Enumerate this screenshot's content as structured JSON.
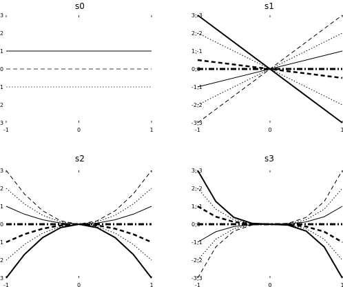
{
  "chart_data": [
    {
      "type": "line",
      "title": "s0",
      "xlim": [
        -1,
        1
      ],
      "ylim": [
        -3,
        3
      ],
      "x_ticks": [
        "-1",
        "0",
        "1"
      ],
      "y_ticks": [
        "3",
        "2",
        "1",
        "0",
        "1",
        "2",
        "3"
      ],
      "y_tick_values": [
        3,
        2,
        1,
        0,
        -1,
        -2,
        -3
      ],
      "series": [
        {
          "style": "solid",
          "width": 1.0,
          "x": [
            -1,
            1
          ],
          "y": [
            1,
            1
          ]
        },
        {
          "style": "dashed",
          "width": 0.8,
          "x": [
            -1,
            1
          ],
          "y": [
            0,
            0
          ]
        },
        {
          "style": "dotted",
          "width": 0.8,
          "x": [
            -1,
            1
          ],
          "y": [
            -1,
            -1
          ]
        }
      ]
    },
    {
      "type": "line",
      "title": "s1",
      "xlim": [
        -1,
        1
      ],
      "ylim": [
        -3,
        3
      ],
      "x_ticks": [
        "-1",
        "0",
        "1"
      ],
      "y_ticks": [
        "3;-3",
        "2;-2",
        "1;-1",
        "0;0",
        "-1;1",
        "-2;2",
        "-3;3"
      ],
      "y_tick_values": [
        3,
        2,
        1,
        0,
        -1,
        -2,
        -3
      ],
      "series": [
        {
          "style": "solid",
          "width": 2.0,
          "x": [
            -1,
            0,
            1
          ],
          "y": [
            3,
            0,
            -3
          ]
        },
        {
          "style": "dotted",
          "width": 1.0,
          "x": [
            -1,
            0,
            1
          ],
          "y": [
            2,
            0,
            -2
          ]
        },
        {
          "style": "dashed",
          "width": 2.5,
          "x": [
            -1,
            0,
            1
          ],
          "y": [
            0.5,
            0,
            -0.5
          ]
        },
        {
          "style": "dashdot",
          "width": 3.0,
          "x": [
            -1,
            0,
            1
          ],
          "y": [
            0,
            0,
            0
          ]
        },
        {
          "style": "solid",
          "width": 1.0,
          "x": [
            -1,
            0,
            1
          ],
          "y": [
            -1,
            0,
            1
          ]
        },
        {
          "style": "dotted",
          "width": 1.0,
          "x": [
            -1,
            0,
            1
          ],
          "y": [
            -2,
            0,
            2
          ]
        },
        {
          "style": "dashed",
          "width": 1.0,
          "x": [
            -1,
            0,
            1
          ],
          "y": [
            -3,
            0,
            3
          ]
        }
      ]
    },
    {
      "type": "line",
      "title": "s2",
      "xlim": [
        -1,
        1
      ],
      "ylim": [
        -3,
        3
      ],
      "x_ticks": [
        "-1",
        "0",
        "1"
      ],
      "y_ticks": [
        "3",
        "2",
        "1",
        "0",
        "1",
        "2",
        "3"
      ],
      "y_tick_values": [
        3,
        2,
        1,
        0,
        -1,
        -2,
        -3
      ],
      "series": [
        {
          "style": "dashed",
          "width": 1.0,
          "x": [
            -1,
            -0.75,
            -0.5,
            -0.25,
            0,
            0.25,
            0.5,
            0.75,
            1
          ],
          "y": [
            3,
            1.69,
            0.75,
            0.19,
            0,
            0.19,
            0.75,
            1.69,
            3
          ]
        },
        {
          "style": "dotted",
          "width": 1.0,
          "x": [
            -1,
            -0.75,
            -0.5,
            -0.25,
            0,
            0.25,
            0.5,
            0.75,
            1
          ],
          "y": [
            2,
            1.13,
            0.5,
            0.13,
            0,
            0.13,
            0.5,
            1.13,
            2
          ]
        },
        {
          "style": "solid",
          "width": 1.0,
          "x": [
            -1,
            -0.75,
            -0.5,
            -0.25,
            0,
            0.25,
            0.5,
            0.75,
            1
          ],
          "y": [
            1,
            0.56,
            0.25,
            0.06,
            0,
            0.06,
            0.25,
            0.56,
            1
          ]
        },
        {
          "style": "dashdot",
          "width": 3.0,
          "x": [
            -1,
            0,
            1
          ],
          "y": [
            0,
            0,
            0
          ]
        },
        {
          "style": "dashed",
          "width": 2.5,
          "x": [
            -1,
            -0.75,
            -0.5,
            -0.25,
            0,
            0.25,
            0.5,
            0.75,
            1
          ],
          "y": [
            -1,
            -0.56,
            -0.25,
            -0.06,
            0,
            -0.06,
            -0.25,
            -0.56,
            -1
          ]
        },
        {
          "style": "dotted",
          "width": 1.0,
          "x": [
            -1,
            -0.75,
            -0.5,
            -0.25,
            0,
            0.25,
            0.5,
            0.75,
            1
          ],
          "y": [
            -2,
            -1.13,
            -0.5,
            -0.13,
            0,
            -0.13,
            -0.5,
            -1.13,
            -2
          ]
        },
        {
          "style": "solid",
          "width": 2.0,
          "x": [
            -1,
            -0.75,
            -0.5,
            -0.25,
            0,
            0.25,
            0.5,
            0.75,
            1
          ],
          "y": [
            -3,
            -1.69,
            -0.75,
            -0.19,
            0,
            -0.19,
            -0.75,
            -1.69,
            -3
          ]
        }
      ]
    },
    {
      "type": "line",
      "title": "s3",
      "xlim": [
        -1,
        1
      ],
      "ylim": [
        -3,
        3
      ],
      "x_ticks": [
        "-1",
        "0",
        "1"
      ],
      "y_ticks": [
        "3;-3",
        "2;-2",
        "1;-1",
        "0;0",
        "-1;1",
        "-2;2",
        "-3;3"
      ],
      "y_tick_values": [
        3,
        2,
        1,
        0,
        -1,
        -2,
        -3
      ],
      "series": [
        {
          "style": "solid",
          "width": 2.0,
          "x": [
            -1,
            -0.75,
            -0.5,
            -0.25,
            0,
            0.25,
            0.5,
            0.75,
            1
          ],
          "y": [
            3,
            1.27,
            0.38,
            0.05,
            0,
            -0.05,
            -0.38,
            -1.27,
            -3
          ]
        },
        {
          "style": "dotted",
          "width": 1.0,
          "x": [
            -1,
            -0.75,
            -0.5,
            -0.25,
            0,
            0.25,
            0.5,
            0.75,
            1
          ],
          "y": [
            2,
            0.84,
            0.25,
            0.03,
            0,
            -0.03,
            -0.25,
            -0.84,
            -2
          ]
        },
        {
          "style": "dashed",
          "width": 2.5,
          "x": [
            -1,
            -0.75,
            -0.5,
            -0.25,
            0,
            0.25,
            0.5,
            0.75,
            1
          ],
          "y": [
            1,
            0.42,
            0.13,
            0.02,
            0,
            -0.02,
            -0.13,
            -0.42,
            -1
          ]
        },
        {
          "style": "dashdot",
          "width": 3.0,
          "x": [
            -1,
            0,
            1
          ],
          "y": [
            0,
            0,
            0
          ]
        },
        {
          "style": "solid",
          "width": 1.0,
          "x": [
            -1,
            -0.75,
            -0.5,
            -0.25,
            0,
            0.25,
            0.5,
            0.75,
            1
          ],
          "y": [
            -1,
            -0.42,
            -0.13,
            -0.02,
            0,
            0.02,
            0.13,
            0.42,
            1
          ]
        },
        {
          "style": "dotted",
          "width": 1.0,
          "x": [
            -1,
            -0.75,
            -0.5,
            -0.25,
            0,
            0.25,
            0.5,
            0.75,
            1
          ],
          "y": [
            -2,
            -0.84,
            -0.25,
            -0.03,
            0,
            0.03,
            0.25,
            0.84,
            2
          ]
        },
        {
          "style": "dashed",
          "width": 1.0,
          "x": [
            -1,
            -0.75,
            -0.5,
            -0.25,
            0,
            0.25,
            0.5,
            0.75,
            1
          ],
          "y": [
            -3,
            -1.27,
            -0.38,
            -0.05,
            0,
            0.05,
            0.38,
            1.27,
            3
          ]
        }
      ]
    }
  ]
}
